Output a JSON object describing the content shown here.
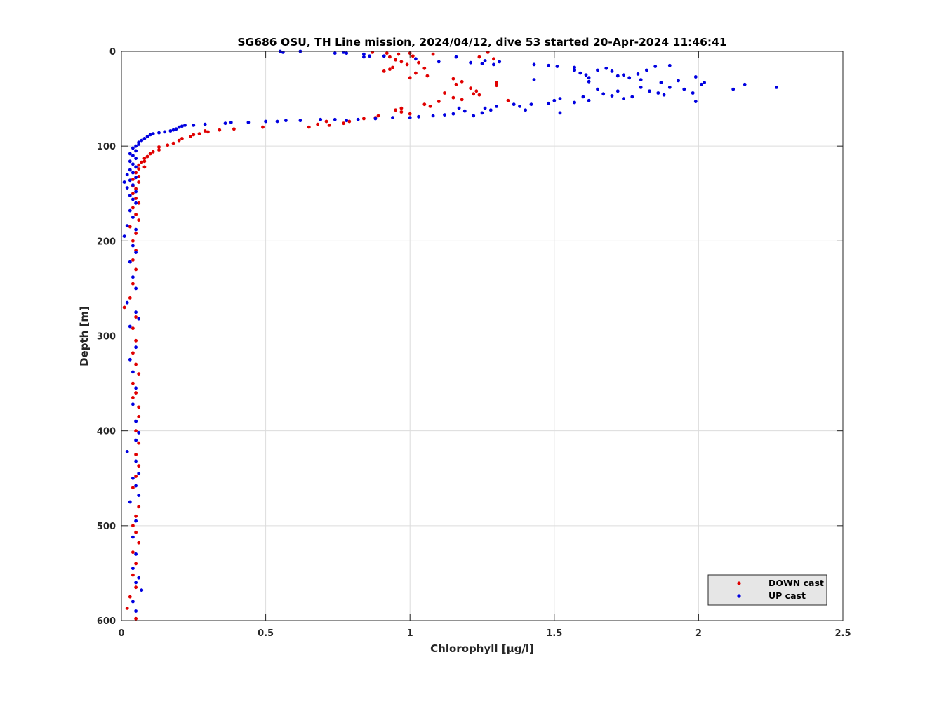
{
  "chart_data": {
    "type": "scatter",
    "title": "SG686 OSU, TH Line mission, 2024/04/12, dive 53 started 20-Apr-2024 11:46:41",
    "xlabel": "Chlorophyll [μg/l]",
    "ylabel": "Depth [m]",
    "xlim": [
      0,
      2.5
    ],
    "ylim": [
      0,
      600
    ],
    "y_reversed": true,
    "grid": true,
    "legend_position": "bottom-right",
    "x_ticks": [
      "0",
      "0.5",
      "1",
      "1.5",
      "2",
      "2.5"
    ],
    "y_ticks": [
      "0",
      "100",
      "200",
      "300",
      "400",
      "500",
      "600"
    ],
    "series": [
      {
        "name": "DOWN cast",
        "color": "#e00000",
        "points": [
          [
            0.87,
            1
          ],
          [
            0.92,
            2
          ],
          [
            0.96,
            3
          ],
          [
            1.0,
            2
          ],
          [
            1.01,
            5
          ],
          [
            1.08,
            3
          ],
          [
            1.27,
            1
          ],
          [
            1.24,
            6
          ],
          [
            1.29,
            8
          ],
          [
            0.93,
            6
          ],
          [
            0.95,
            9
          ],
          [
            0.97,
            11
          ],
          [
            0.99,
            14
          ],
          [
            1.03,
            12
          ],
          [
            0.94,
            17
          ],
          [
            0.91,
            21
          ],
          [
            0.93,
            19
          ],
          [
            1.05,
            18
          ],
          [
            1.02,
            23
          ],
          [
            1.06,
            26
          ],
          [
            1.0,
            28
          ],
          [
            1.15,
            29
          ],
          [
            1.18,
            32
          ],
          [
            1.16,
            35
          ],
          [
            1.3,
            33
          ],
          [
            1.3,
            36
          ],
          [
            1.21,
            39
          ],
          [
            1.23,
            42
          ],
          [
            1.22,
            45
          ],
          [
            1.24,
            46
          ],
          [
            1.12,
            44
          ],
          [
            1.15,
            49
          ],
          [
            1.18,
            51
          ],
          [
            1.1,
            53
          ],
          [
            1.05,
            56
          ],
          [
            1.07,
            58
          ],
          [
            1.34,
            52
          ],
          [
            0.97,
            60
          ],
          [
            0.95,
            62
          ],
          [
            0.97,
            64
          ],
          [
            1.0,
            66
          ],
          [
            0.89,
            68
          ],
          [
            0.88,
            70
          ],
          [
            0.84,
            71
          ],
          [
            0.79,
            74
          ],
          [
            0.77,
            76
          ],
          [
            0.72,
            78
          ],
          [
            0.71,
            74
          ],
          [
            0.68,
            77
          ],
          [
            0.65,
            80
          ],
          [
            0.49,
            80
          ],
          [
            0.39,
            82
          ],
          [
            0.34,
            83
          ],
          [
            0.3,
            85
          ],
          [
            0.29,
            84
          ],
          [
            0.27,
            87
          ],
          [
            0.25,
            88
          ],
          [
            0.24,
            90
          ],
          [
            0.21,
            92
          ],
          [
            0.2,
            94
          ],
          [
            0.18,
            97
          ],
          [
            0.16,
            99
          ],
          [
            0.13,
            101
          ],
          [
            0.13,
            104
          ],
          [
            0.11,
            106
          ],
          [
            0.1,
            108
          ],
          [
            0.09,
            111
          ],
          [
            0.08,
            113
          ],
          [
            0.08,
            116
          ],
          [
            0.07,
            117
          ],
          [
            0.06,
            120
          ],
          [
            0.08,
            122
          ],
          [
            0.06,
            124
          ],
          [
            0.05,
            128
          ],
          [
            0.06,
            132
          ],
          [
            0.04,
            135
          ],
          [
            0.06,
            138
          ],
          [
            0.04,
            142
          ],
          [
            0.05,
            145
          ],
          [
            0.04,
            150
          ],
          [
            0.05,
            155
          ],
          [
            0.06,
            160
          ],
          [
            0.04,
            165
          ],
          [
            0.05,
            172
          ],
          [
            0.06,
            178
          ],
          [
            0.03,
            185
          ],
          [
            0.05,
            192
          ],
          [
            0.04,
            200
          ],
          [
            0.05,
            210
          ],
          [
            0.04,
            220
          ],
          [
            0.05,
            230
          ],
          [
            0.04,
            245
          ],
          [
            0.03,
            260
          ],
          [
            0.01,
            270
          ],
          [
            0.05,
            280
          ],
          [
            0.04,
            292
          ],
          [
            0.05,
            305
          ],
          [
            0.04,
            318
          ],
          [
            0.05,
            330
          ],
          [
            0.06,
            340
          ],
          [
            0.04,
            350
          ],
          [
            0.05,
            360
          ],
          [
            0.04,
            365
          ],
          [
            0.06,
            375
          ],
          [
            0.06,
            385
          ],
          [
            0.05,
            400
          ],
          [
            0.06,
            413
          ],
          [
            0.05,
            425
          ],
          [
            0.06,
            437
          ],
          [
            0.05,
            448
          ],
          [
            0.04,
            460
          ],
          [
            0.06,
            480
          ],
          [
            0.05,
            490
          ],
          [
            0.04,
            500
          ],
          [
            0.05,
            507
          ],
          [
            0.06,
            518
          ],
          [
            0.04,
            528
          ],
          [
            0.05,
            540
          ],
          [
            0.04,
            552
          ],
          [
            0.05,
            565
          ],
          [
            0.03,
            575
          ],
          [
            0.02,
            587
          ],
          [
            0.05,
            598
          ]
        ]
      },
      {
        "name": "UP cast",
        "color": "#0000e0",
        "points": [
          [
            0.55,
            0
          ],
          [
            0.56,
            1
          ],
          [
            0.62,
            0
          ],
          [
            0.74,
            2
          ],
          [
            0.77,
            1
          ],
          [
            0.78,
            2
          ],
          [
            0.84,
            3
          ],
          [
            0.86,
            5
          ],
          [
            0.84,
            6
          ],
          [
            0.91,
            5
          ],
          [
            1.02,
            8
          ],
          [
            1.1,
            11
          ],
          [
            1.16,
            6
          ],
          [
            1.21,
            12
          ],
          [
            1.25,
            13
          ],
          [
            1.26,
            10
          ],
          [
            1.31,
            11
          ],
          [
            1.29,
            14
          ],
          [
            1.43,
            14
          ],
          [
            1.48,
            15
          ],
          [
            1.51,
            16
          ],
          [
            1.57,
            17
          ],
          [
            1.57,
            20
          ],
          [
            1.59,
            23
          ],
          [
            1.61,
            25
          ],
          [
            1.62,
            28
          ],
          [
            1.62,
            32
          ],
          [
            1.65,
            20
          ],
          [
            1.68,
            18
          ],
          [
            1.7,
            21
          ],
          [
            1.72,
            26
          ],
          [
            1.74,
            25
          ],
          [
            1.76,
            28
          ],
          [
            1.79,
            24
          ],
          [
            1.8,
            30
          ],
          [
            1.85,
            16
          ],
          [
            1.9,
            15
          ],
          [
            1.82,
            20
          ],
          [
            1.87,
            33
          ],
          [
            1.93,
            31
          ],
          [
            1.95,
            40
          ],
          [
            1.98,
            44
          ],
          [
            1.99,
            27
          ],
          [
            2.01,
            35
          ],
          [
            2.02,
            33
          ],
          [
            2.12,
            40
          ],
          [
            2.16,
            35
          ],
          [
            2.27,
            38
          ],
          [
            1.65,
            40
          ],
          [
            1.67,
            45
          ],
          [
            1.7,
            47
          ],
          [
            1.72,
            42
          ],
          [
            1.74,
            50
          ],
          [
            1.77,
            48
          ],
          [
            1.8,
            38
          ],
          [
            1.83,
            42
          ],
          [
            1.86,
            44
          ],
          [
            1.88,
            46
          ],
          [
            1.9,
            38
          ],
          [
            1.6,
            48
          ],
          [
            1.62,
            52
          ],
          [
            1.57,
            54
          ],
          [
            1.52,
            50
          ],
          [
            1.5,
            52
          ],
          [
            1.48,
            55
          ],
          [
            1.43,
            30
          ],
          [
            1.36,
            56
          ],
          [
            1.38,
            58
          ],
          [
            1.4,
            62
          ],
          [
            1.42,
            56
          ],
          [
            1.52,
            65
          ],
          [
            1.99,
            53
          ],
          [
            1.3,
            58
          ],
          [
            1.28,
            62
          ],
          [
            1.26,
            60
          ],
          [
            1.25,
            65
          ],
          [
            1.22,
            68
          ],
          [
            1.19,
            63
          ],
          [
            1.17,
            60
          ],
          [
            1.15,
            66
          ],
          [
            1.12,
            67
          ],
          [
            1.08,
            68
          ],
          [
            1.03,
            69
          ],
          [
            1.0,
            70
          ],
          [
            0.94,
            70
          ],
          [
            0.88,
            71
          ],
          [
            0.82,
            72
          ],
          [
            0.78,
            73
          ],
          [
            0.74,
            72
          ],
          [
            0.69,
            72
          ],
          [
            0.62,
            73
          ],
          [
            0.57,
            73
          ],
          [
            0.54,
            74
          ],
          [
            0.5,
            74
          ],
          [
            0.44,
            75
          ],
          [
            0.38,
            75
          ],
          [
            0.36,
            76
          ],
          [
            0.29,
            77
          ],
          [
            0.25,
            78
          ],
          [
            0.22,
            78
          ],
          [
            0.21,
            79
          ],
          [
            0.2,
            80
          ],
          [
            0.19,
            82
          ],
          [
            0.18,
            83
          ],
          [
            0.17,
            84
          ],
          [
            0.15,
            85
          ],
          [
            0.13,
            86
          ],
          [
            0.11,
            87
          ],
          [
            0.1,
            88
          ],
          [
            0.09,
            90
          ],
          [
            0.08,
            92
          ],
          [
            0.07,
            94
          ],
          [
            0.06,
            96
          ],
          [
            0.06,
            98
          ],
          [
            0.05,
            100
          ],
          [
            0.04,
            102
          ],
          [
            0.05,
            105
          ],
          [
            0.03,
            108
          ],
          [
            0.04,
            110
          ],
          [
            0.05,
            113
          ],
          [
            0.03,
            116
          ],
          [
            0.04,
            119
          ],
          [
            0.05,
            122
          ],
          [
            0.03,
            125
          ],
          [
            0.04,
            128
          ],
          [
            0.02,
            130
          ],
          [
            0.05,
            133
          ],
          [
            0.03,
            136
          ],
          [
            0.01,
            138
          ],
          [
            0.04,
            141
          ],
          [
            0.02,
            144
          ],
          [
            0.05,
            148
          ],
          [
            0.03,
            152
          ],
          [
            0.04,
            156
          ],
          [
            0.05,
            160
          ],
          [
            0.03,
            168
          ],
          [
            0.04,
            175
          ],
          [
            0.02,
            184
          ],
          [
            0.05,
            188
          ],
          [
            0.01,
            195
          ],
          [
            0.04,
            205
          ],
          [
            0.05,
            212
          ],
          [
            0.03,
            222
          ],
          [
            0.04,
            238
          ],
          [
            0.05,
            250
          ],
          [
            0.02,
            265
          ],
          [
            0.05,
            275
          ],
          [
            0.06,
            282
          ],
          [
            0.03,
            290
          ],
          [
            0.05,
            312
          ],
          [
            0.03,
            325
          ],
          [
            0.04,
            338
          ],
          [
            0.05,
            355
          ],
          [
            0.04,
            372
          ],
          [
            0.05,
            390
          ],
          [
            0.06,
            402
          ],
          [
            0.05,
            410
          ],
          [
            0.02,
            422
          ],
          [
            0.05,
            432
          ],
          [
            0.06,
            445
          ],
          [
            0.04,
            450
          ],
          [
            0.05,
            458
          ],
          [
            0.06,
            468
          ],
          [
            0.03,
            475
          ],
          [
            0.05,
            495
          ],
          [
            0.04,
            512
          ],
          [
            0.05,
            530
          ],
          [
            0.04,
            545
          ],
          [
            0.06,
            555
          ],
          [
            0.05,
            560
          ],
          [
            0.07,
            568
          ],
          [
            0.04,
            580
          ],
          [
            0.05,
            590
          ]
        ]
      }
    ]
  }
}
